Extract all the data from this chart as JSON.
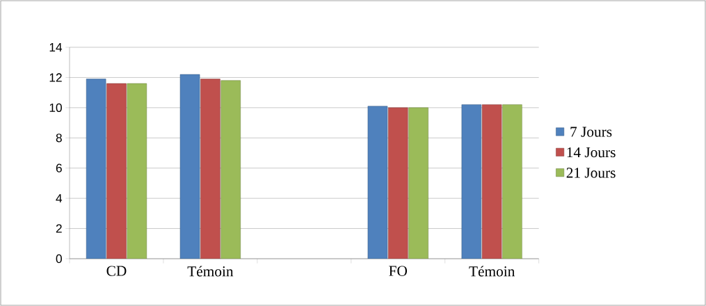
{
  "chart_data": {
    "type": "bar",
    "categories": [
      "CD",
      "Témoin",
      null,
      "FO",
      "Témoin"
    ],
    "series": [
      {
        "name": "7 Jours",
        "color": "#4f81bd",
        "values": [
          11.9,
          12.2,
          null,
          10.1,
          10.2
        ]
      },
      {
        "name": "14 Jours",
        "color": "#c0504d",
        "values": [
          11.6,
          11.9,
          null,
          10.0,
          10.2
        ]
      },
      {
        "name": "21 Jours",
        "color": "#9bbb59",
        "values": [
          11.6,
          11.8,
          null,
          10.0,
          10.2
        ]
      }
    ],
    "ylim": [
      0,
      14
    ],
    "yticks": [
      0,
      2,
      4,
      6,
      8,
      10,
      12,
      14
    ],
    "grid": "y",
    "legend": "right"
  }
}
